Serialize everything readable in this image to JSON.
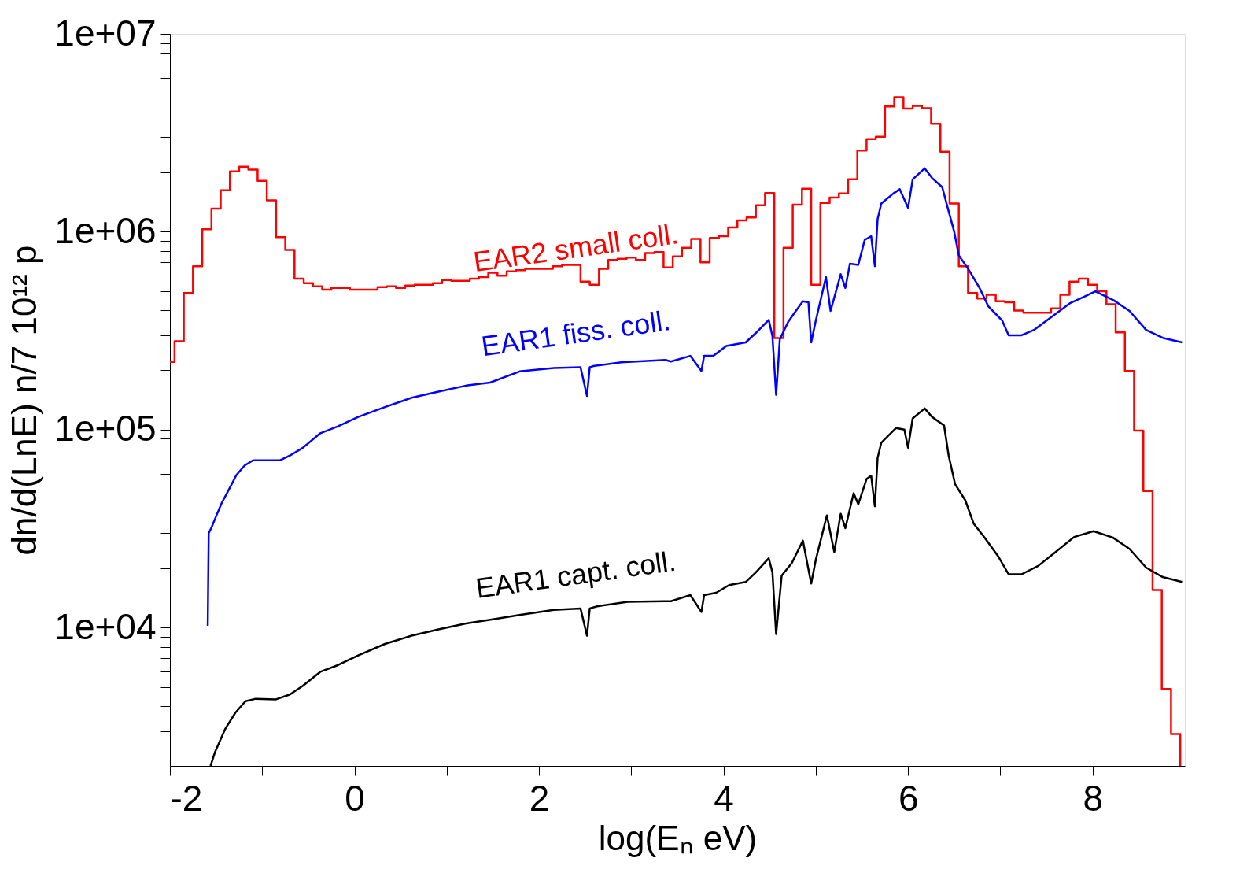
{
  "chart_data": {
    "type": "step",
    "xlabel": "log(Eₙ eV)",
    "ylabel": "dn/d(LnE) n/7 10¹² p",
    "log": "y",
    "grid": false,
    "xlim": [
      -2,
      9
    ],
    "xticks": [
      -2,
      {
        "value": -1,
        "label": null
      },
      0,
      {
        "value": 1,
        "label": null
      },
      2,
      {
        "value": 3,
        "label": null
      },
      4,
      {
        "value": 5,
        "label": null
      },
      6,
      {
        "value": 7,
        "label": null
      },
      8
    ],
    "ylim": [
      2000,
      10000000
    ],
    "yticks": [
      {
        "value": 3000,
        "label": null
      },
      {
        "value": 4000,
        "label": null
      },
      {
        "value": 5000,
        "label": null
      },
      {
        "value": 6000,
        "label": null
      },
      {
        "value": 7000,
        "label": null
      },
      {
        "value": 8000,
        "label": null
      },
      {
        "value": 9000,
        "label": null
      },
      {
        "value": 10000,
        "label": "1e+04"
      },
      {
        "value": 20000,
        "label": null
      },
      {
        "value": 30000,
        "label": null
      },
      {
        "value": 40000,
        "label": null
      },
      {
        "value": 50000,
        "label": null
      },
      {
        "value": 60000,
        "label": null
      },
      {
        "value": 70000,
        "label": null
      },
      {
        "value": 80000,
        "label": null
      },
      {
        "value": 90000,
        "label": null
      },
      {
        "value": 100000,
        "label": "1e+05"
      },
      {
        "value": 200000,
        "label": null
      },
      {
        "value": 300000,
        "label": null
      },
      {
        "value": 400000,
        "label": null
      },
      {
        "value": 500000,
        "label": null
      },
      {
        "value": 600000,
        "label": null
      },
      {
        "value": 700000,
        "label": null
      },
      {
        "value": 800000,
        "label": null
      },
      {
        "value": 900000,
        "label": null
      },
      {
        "value": 1000000,
        "label": "1e+06"
      },
      {
        "value": 2000000,
        "label": null
      },
      {
        "value": 3000000,
        "label": null
      },
      {
        "value": 4000000,
        "label": null
      },
      {
        "value": 5000000,
        "label": null
      },
      {
        "value": 6000000,
        "label": null
      },
      {
        "value": 7000000,
        "label": null
      },
      {
        "value": 8000000,
        "label": null
      },
      {
        "value": 9000000,
        "label": null
      },
      {
        "value": 10000000,
        "label": "1e+07"
      }
    ],
    "series": [
      {
        "name": "EAR2 small coll.",
        "color": "#ff0000",
        "x": [
          -2,
          -1.95,
          -1.85,
          -1.75,
          -1.65,
          -1.55,
          -1.45,
          -1.35,
          -1.25,
          -1.15,
          -1.05,
          -0.95,
          -0.85,
          -0.75,
          -0.65,
          -0.55,
          -0.45,
          -0.35,
          -0.25,
          -0.15,
          -0.05,
          0.05,
          0.15,
          0.25,
          0.35,
          0.45,
          0.55,
          0.65,
          0.75,
          0.85,
          0.95,
          1.05,
          1.15,
          1.25,
          1.35,
          1.45,
          1.55,
          1.65,
          1.75,
          1.85,
          1.95,
          2.05,
          2.15,
          2.25,
          2.35,
          2.45,
          2.55,
          2.65,
          2.75,
          2.85,
          2.95,
          3.05,
          3.15,
          3.25,
          3.35,
          3.45,
          3.55,
          3.65,
          3.75,
          3.85,
          3.95,
          4.05,
          4.15,
          4.25,
          4.35,
          4.45,
          4.55,
          4.65,
          4.75,
          4.85,
          4.95,
          5.05,
          5.15,
          5.25,
          5.35,
          5.45,
          5.55,
          5.65,
          5.75,
          5.85,
          5.95,
          6.05,
          6.15,
          6.25,
          6.35,
          6.45,
          6.55,
          6.65,
          6.75,
          6.85,
          6.95,
          7.05,
          7.15,
          7.25,
          7.35,
          7.45,
          7.55,
          7.65,
          7.75,
          7.85,
          7.95,
          8.05,
          8.15,
          8.25,
          8.35,
          8.45,
          8.55,
          8.65,
          8.75,
          8.85,
          8.95
        ],
        "values": [
          220000,
          280000,
          490000,
          670000,
          1030000,
          1310000,
          1620000,
          2020000,
          2130000,
          2060000,
          1810000,
          1440000,
          940000,
          810000,
          580000,
          550000,
          530000,
          510000,
          520000,
          520000,
          510000,
          510000,
          510000,
          525000,
          530000,
          520000,
          535000,
          540000,
          540000,
          550000,
          570000,
          565000,
          565000,
          580000,
          590000,
          620000,
          600000,
          630000,
          640000,
          650000,
          650000,
          650000,
          670000,
          680000,
          680000,
          560000,
          540000,
          650000,
          720000,
          730000,
          740000,
          720000,
          780000,
          790000,
          660000,
          750000,
          830000,
          920000,
          700000,
          930000,
          950000,
          1050000,
          1140000,
          1180000,
          1360000,
          1570000,
          290000,
          830000,
          1370000,
          1650000,
          540000,
          1400000,
          1490000,
          1560000,
          1840000,
          2570000,
          2940000,
          3020000,
          4300000,
          4780000,
          4190000,
          4330000,
          4210000,
          3510000,
          2540000,
          1390000,
          670000,
          490000,
          460000,
          480000,
          445000,
          440000,
          400000,
          390000,
          390000,
          390000,
          410000,
          480000,
          560000,
          580000,
          540000,
          500000,
          430000,
          310000,
          198000,
          99000,
          49000,
          15500,
          4900,
          2900,
          2000
        ]
      },
      {
        "name": "EAR1 fiss. coll.",
        "color": "#0000ff",
        "type": "line",
        "x": [
          -1.59,
          -1.58,
          -1.55,
          -1.5,
          -1.44,
          -1.35,
          -1.28,
          -1.19,
          -1.1,
          -0.99,
          -0.81,
          -0.7,
          -0.56,
          -0.37,
          -0.18,
          0.04,
          0.33,
          0.62,
          0.92,
          1.21,
          1.47,
          1.79,
          2.16,
          2.45,
          2.52,
          2.55,
          2.6,
          2.89,
          3.37,
          3.43,
          3.64,
          3.76,
          3.79,
          3.89,
          4.03,
          4.24,
          4.35,
          4.49,
          4.53,
          4.57,
          4.61,
          4.7,
          4.77,
          4.86,
          4.92,
          4.95,
          5.0,
          5.11,
          5.16,
          5.27,
          5.32,
          5.37,
          5.46,
          5.53,
          5.6,
          5.64,
          5.67,
          5.71,
          5.84,
          5.91,
          6.0,
          6.05,
          6.18,
          6.26,
          6.37,
          6.43,
          6.5,
          6.55,
          6.66,
          6.77,
          6.87,
          7.02,
          7.09,
          7.23,
          7.37,
          7.55,
          7.76,
          7.91,
          8.03,
          8.23,
          8.4,
          8.58,
          8.76,
          8.97
        ],
        "values": [
          10200,
          30000,
          32000,
          36500,
          42500,
          51000,
          59000,
          66000,
          70000,
          70000,
          70000,
          74000,
          81000,
          96000,
          104000,
          116000,
          130000,
          145000,
          156000,
          167000,
          173000,
          197000,
          205000,
          207000,
          148000,
          207000,
          210000,
          219000,
          225000,
          221000,
          236000,
          198000,
          236000,
          236000,
          265000,
          276000,
          308000,
          359000,
          296000,
          150000,
          286000,
          350000,
          390000,
          445000,
          440000,
          276000,
          356000,
          590000,
          398000,
          610000,
          520000,
          690000,
          680000,
          910000,
          950000,
          670000,
          1160000,
          1390000,
          1560000,
          1640000,
          1320000,
          1840000,
          2090000,
          1870000,
          1680000,
          1320000,
          1000000,
          760000,
          640000,
          525000,
          420000,
          356000,
          300000,
          300000,
          320000,
          370000,
          437000,
          470000,
          500000,
          450000,
          398000,
          319000,
          291000,
          276000
        ]
      },
      {
        "name": "EAR1 capt. coll.",
        "color": "#000000",
        "type": "line",
        "x": [
          -1.56,
          -1.51,
          -1.4,
          -1.29,
          -1.18,
          -1.07,
          -0.85,
          -0.7,
          -0.56,
          -0.37,
          -0.18,
          0.04,
          0.33,
          0.62,
          0.92,
          1.21,
          1.5,
          1.8,
          2.16,
          2.45,
          2.52,
          2.55,
          2.63,
          2.96,
          3.36,
          3.43,
          3.64,
          3.76,
          3.79,
          3.92,
          4.06,
          4.24,
          4.35,
          4.49,
          4.53,
          4.57,
          4.63,
          4.74,
          4.86,
          4.95,
          5.0,
          5.12,
          5.2,
          5.27,
          5.32,
          5.41,
          5.46,
          5.55,
          5.6,
          5.64,
          5.67,
          5.71,
          5.87,
          5.96,
          6.0,
          6.05,
          6.18,
          6.26,
          6.39,
          6.44,
          6.51,
          6.62,
          6.71,
          6.83,
          6.98,
          7.09,
          7.23,
          7.41,
          7.58,
          7.8,
          8.01,
          8.22,
          8.4,
          8.58,
          8.76,
          8.97
        ],
        "values": [
          2000,
          2360,
          3080,
          3720,
          4250,
          4370,
          4340,
          4590,
          5080,
          5980,
          6460,
          7240,
          8270,
          9100,
          9820,
          10500,
          11000,
          11600,
          12300,
          12500,
          9100,
          12500,
          12800,
          13500,
          13600,
          13600,
          14600,
          12000,
          14600,
          15000,
          16400,
          17000,
          19000,
          22400,
          19000,
          9270,
          18300,
          21200,
          27500,
          16700,
          22000,
          36900,
          24100,
          37600,
          31800,
          47800,
          42000,
          56300,
          58500,
          41000,
          72000,
          86000,
          102000,
          100000,
          81000,
          114000,
          128000,
          116000,
          105000,
          74000,
          53000,
          44000,
          33600,
          28500,
          22800,
          18600,
          18600,
          20500,
          23700,
          28700,
          30700,
          28500,
          25000,
          20100,
          18000,
          17000
        ]
      }
    ]
  }
}
